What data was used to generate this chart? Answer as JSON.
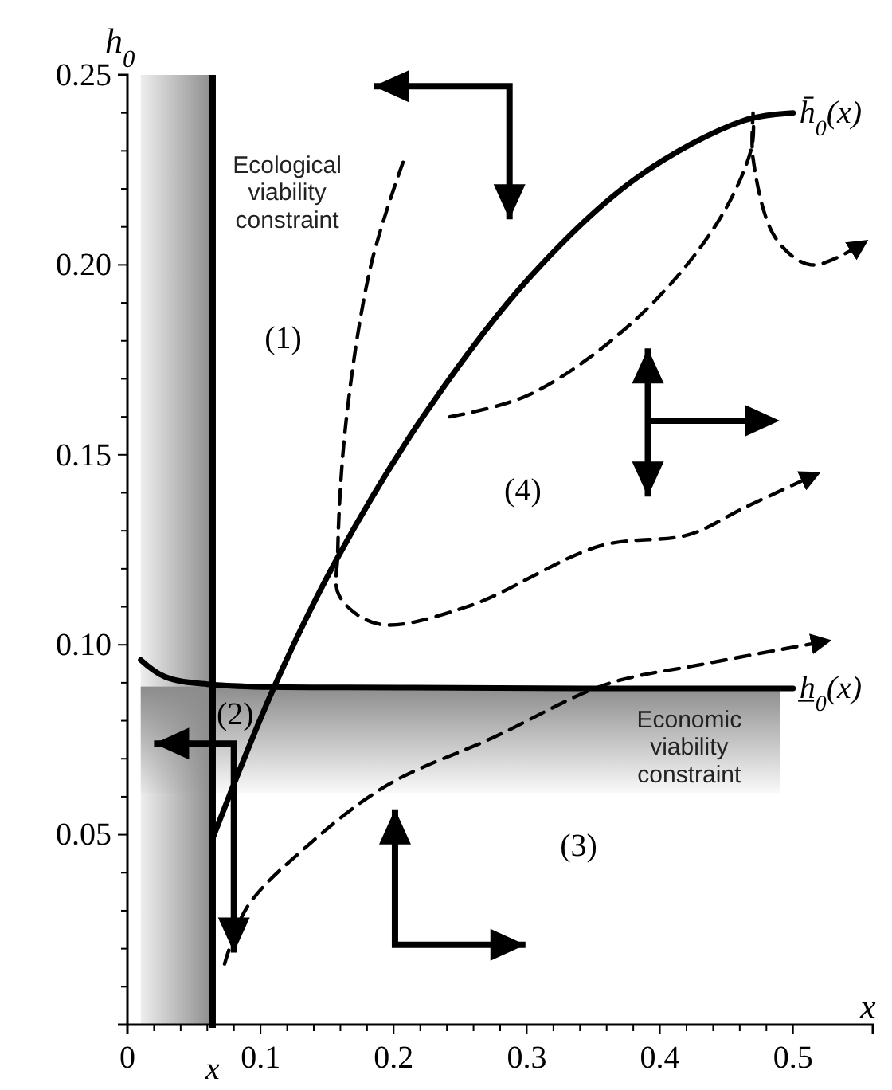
{
  "chart_data": {
    "type": "line",
    "xlabel": "x",
    "ylabel": "h$_{0}$",
    "xlim": [
      0,
      0.56
    ],
    "ylim": [
      0,
      0.25
    ],
    "xticks": [
      0,
      {
        "value": 0.02,
        "label": null
      },
      {
        "value": 0.04,
        "label": null
      },
      {
        "value": 0.06,
        "label": null
      },
      {
        "value": 0.08,
        "label": null
      },
      0.1,
      {
        "value": 0.12,
        "label": null
      },
      {
        "value": 0.14,
        "label": null
      },
      {
        "value": 0.16,
        "label": null
      },
      {
        "value": 0.18,
        "label": null
      },
      0.2,
      {
        "value": 0.22,
        "label": null
      },
      {
        "value": 0.24,
        "label": null
      },
      {
        "value": 0.26,
        "label": null
      },
      {
        "value": 0.28,
        "label": null
      },
      0.3,
      {
        "value": 0.32,
        "label": null
      },
      {
        "value": 0.34,
        "label": null
      },
      {
        "value": 0.36,
        "label": null
      },
      {
        "value": 0.38,
        "label": null
      },
      0.4,
      {
        "value": 0.42,
        "label": null
      },
      {
        "value": 0.44,
        "label": null
      },
      {
        "value": 0.46,
        "label": null
      },
      {
        "value": 0.48,
        "label": null
      },
      0.5
    ],
    "yticks": [
      {
        "value": 0.01,
        "label": null
      },
      {
        "value": 0.02,
        "label": null
      },
      {
        "value": 0.03,
        "label": null
      },
      {
        "value": 0.04,
        "label": null
      },
      0.05,
      {
        "value": 0.06,
        "label": null
      },
      {
        "value": 0.07,
        "label": null
      },
      {
        "value": 0.08,
        "label": null
      },
      {
        "value": 0.09,
        "label": null
      },
      {
        "value": 0.1,
        "label": "0.10"
      },
      {
        "value": 0.11,
        "label": null
      },
      {
        "value": 0.12,
        "label": null
      },
      {
        "value": 0.13,
        "label": null
      },
      {
        "value": 0.14,
        "label": null
      },
      0.15,
      {
        "value": 0.16,
        "label": null
      },
      {
        "value": 0.17,
        "label": null
      },
      {
        "value": 0.18,
        "label": null
      },
      {
        "value": 0.19,
        "label": null
      },
      {
        "value": 0.2,
        "label": "0.20"
      },
      {
        "value": 0.21,
        "label": null
      },
      {
        "value": 0.22,
        "label": null
      },
      {
        "value": 0.23,
        "label": null
      },
      {
        "value": 0.24,
        "label": null
      },
      0.25
    ],
    "grid": false,
    "legend": false,
    "marker": "none",
    "series": [
      {
        "name": "h̄$_{0}$(x)",
        "color": "#000000",
        "line_style": "solid",
        "x": [
          0.064,
          0.111,
          0.158,
          0.224,
          0.303,
          0.383,
          0.463,
          0.5
        ],
        "values": [
          0.049,
          0.0895,
          0.123,
          0.161,
          0.197,
          0.223,
          0.238,
          0.24
        ]
      },
      {
        "name": "h̲$_{0}$(x)",
        "color": "#000000",
        "line_style": "solid",
        "x": [
          0.01,
          0.028,
          0.064,
          0.215,
          0.5
        ],
        "values": [
          0.096,
          0.0916,
          0.0895,
          0.0887,
          0.0885
        ]
      },
      {
        "color": "#000000",
        "line_style": "dashed",
        "x": [
          0.207,
          0.183,
          0.164,
          0.158,
          0.159,
          0.188,
          0.255,
          0.355,
          0.422,
          0.463,
          0.518
        ],
        "values": [
          0.227,
          0.2,
          0.158,
          0.124,
          0.113,
          0.1055,
          0.11,
          0.126,
          0.129,
          0.136,
          0.145
        ]
      },
      {
        "color": "#000000",
        "line_style": "dashed",
        "x": [
          0.242,
          0.303,
          0.383,
          0.443,
          0.469,
          0.47,
          0.47,
          0.487,
          0.514,
          0.554
        ],
        "values": [
          0.16,
          0.166,
          0.186,
          0.211,
          0.231,
          0.24,
          0.228,
          0.207,
          0.2,
          0.206
        ]
      },
      {
        "color": "#000000",
        "line_style": "dashed",
        "x": [
          0.073,
          0.09,
          0.135,
          0.195,
          0.275,
          0.359,
          0.434,
          0.526
        ],
        "values": [
          0.016,
          0.031,
          0.047,
          0.063,
          0.0756,
          0.0895,
          0.095,
          0.101
        ]
      }
    ],
    "ref_lines": [
      {
        "axis": "x",
        "value": 0.064,
        "label": "x",
        "color": "#000000"
      }
    ],
    "bands": [
      {
        "axis": "x",
        "from": 0.01,
        "to": 0.064,
        "color": "#8c8c8c"
      },
      {
        "axis": "y",
        "from": 0.061,
        "to": 0.089,
        "color": "#8c8c8c"
      }
    ],
    "annotations": [
      "(1)",
      "(2)",
      "(3)",
      "(4)",
      "Ecological\nviability\nconstraint",
      "Economic\nviability\nconstraint"
    ]
  }
}
